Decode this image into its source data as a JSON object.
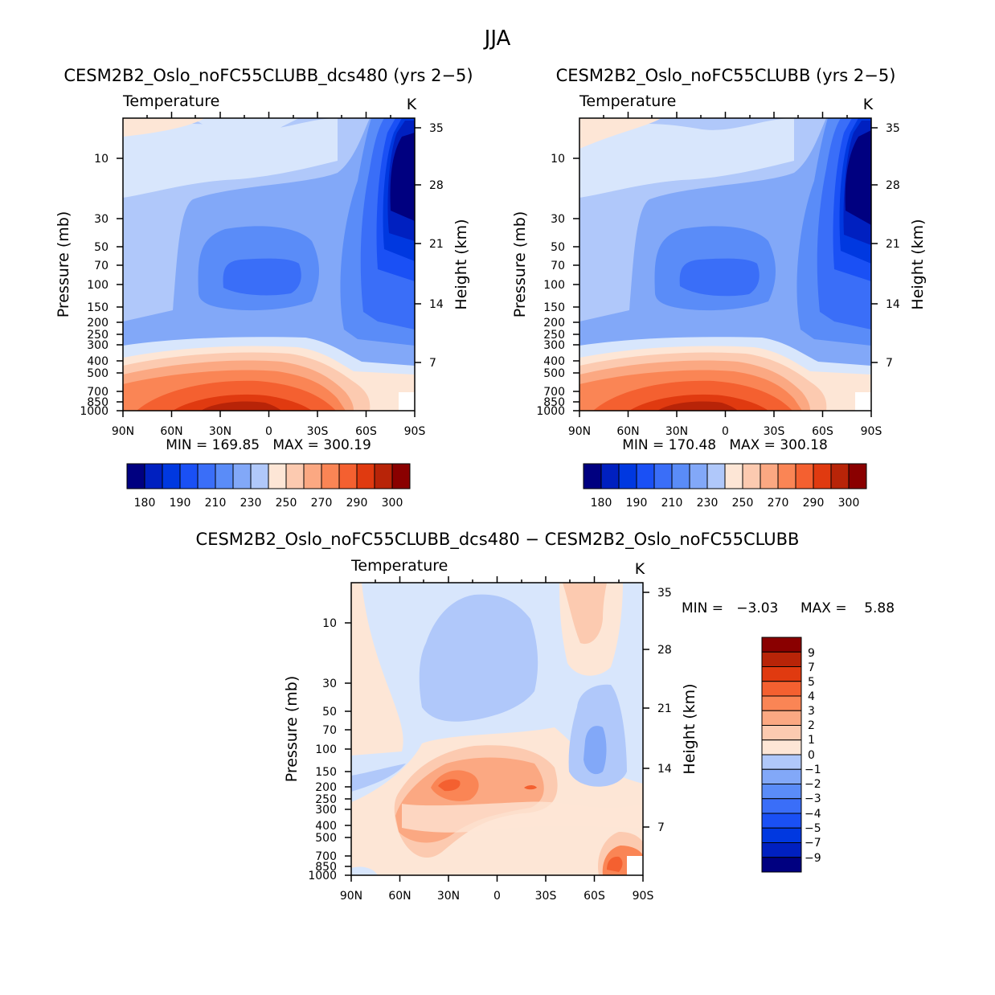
{
  "figure": {
    "main_title": "JJA"
  },
  "chart_data": [
    {
      "type": "heatmap",
      "title": "CESM2B2_Oslo_noFC55CLUBB_dcs480 (yrs 2−5)",
      "subtitle_left": "Temperature",
      "units": "K",
      "xlabel": "",
      "ylabel": "Pressure (mb)",
      "ylabel_right": "Height (km)",
      "x_ticks": [
        "90N",
        "60N",
        "30N",
        "0",
        "30S",
        "60S",
        "90S"
      ],
      "y_ticks": [
        "10",
        "30",
        "50",
        "70",
        "100",
        "150",
        "200",
        "250",
        "300",
        "400",
        "500",
        "700",
        "850",
        "1000"
      ],
      "y_ticks_right": [
        "35",
        "28",
        "21",
        "14",
        "7"
      ],
      "stats": "MIN = 169.85   MAX = 300.19",
      "colorbar_labels": [
        "180",
        "190",
        "210",
        "230",
        "250",
        "270",
        "290",
        "300"
      ],
      "contour_levels": [
        180,
        185,
        190,
        200,
        210,
        220,
        230,
        240,
        250,
        260,
        270,
        280,
        290,
        295,
        300
      ],
      "min": 169.85,
      "max": 300.19
    },
    {
      "type": "heatmap",
      "title": "CESM2B2_Oslo_noFC55CLUBB (yrs 2−5)",
      "subtitle_left": "Temperature",
      "units": "K",
      "xlabel": "",
      "ylabel": "Pressure (mb)",
      "ylabel_right": "Height (km)",
      "x_ticks": [
        "90N",
        "60N",
        "30N",
        "0",
        "30S",
        "60S",
        "90S"
      ],
      "y_ticks": [
        "10",
        "30",
        "50",
        "70",
        "100",
        "150",
        "200",
        "250",
        "300",
        "400",
        "500",
        "700",
        "850",
        "1000"
      ],
      "y_ticks_right": [
        "35",
        "28",
        "21",
        "14",
        "7"
      ],
      "stats": "MIN = 170.48   MAX = 300.18",
      "colorbar_labels": [
        "180",
        "190",
        "210",
        "230",
        "250",
        "270",
        "290",
        "300"
      ],
      "contour_levels": [
        180,
        185,
        190,
        200,
        210,
        220,
        230,
        240,
        250,
        260,
        270,
        280,
        290,
        295,
        300
      ],
      "min": 170.48,
      "max": 300.18
    },
    {
      "type": "heatmap",
      "title": "CESM2B2_Oslo_noFC55CLUBB_dcs480 − CESM2B2_Oslo_noFC55CLUBB",
      "subtitle_left": "Temperature",
      "units": "K",
      "xlabel": "",
      "ylabel": "Pressure (mb)",
      "ylabel_right": "Height (km)",
      "x_ticks": [
        "90N",
        "60N",
        "30N",
        "0",
        "30S",
        "60S",
        "90S"
      ],
      "y_ticks": [
        "10",
        "30",
        "50",
        "70",
        "100",
        "150",
        "200",
        "250",
        "300",
        "400",
        "500",
        "700",
        "850",
        "1000"
      ],
      "y_ticks_right": [
        "35",
        "28",
        "21",
        "14",
        "7"
      ],
      "stats_min": "MIN =   −3.03",
      "stats_max": "MAX =    5.88",
      "colorbar_labels": [
        "9",
        "7",
        "5",
        "4",
        "3",
        "2",
        "1",
        "0",
        "−1",
        "−2",
        "−3",
        "−4",
        "−5",
        "−7",
        "−9"
      ],
      "min": -3.03,
      "max": 5.88
    }
  ],
  "colors": {
    "palette": [
      "#000080",
      "#0020c0",
      "#0038e0",
      "#1a50f5",
      "#3a6ef8",
      "#5a8cf8",
      "#82a8f8",
      "#b0c8fa",
      "#d8e6fc",
      "#fde6d6",
      "#fccab0",
      "#fba882",
      "#fa8555",
      "#f46030",
      "#e03a10",
      "#b82408",
      "#8a0000"
    ]
  }
}
